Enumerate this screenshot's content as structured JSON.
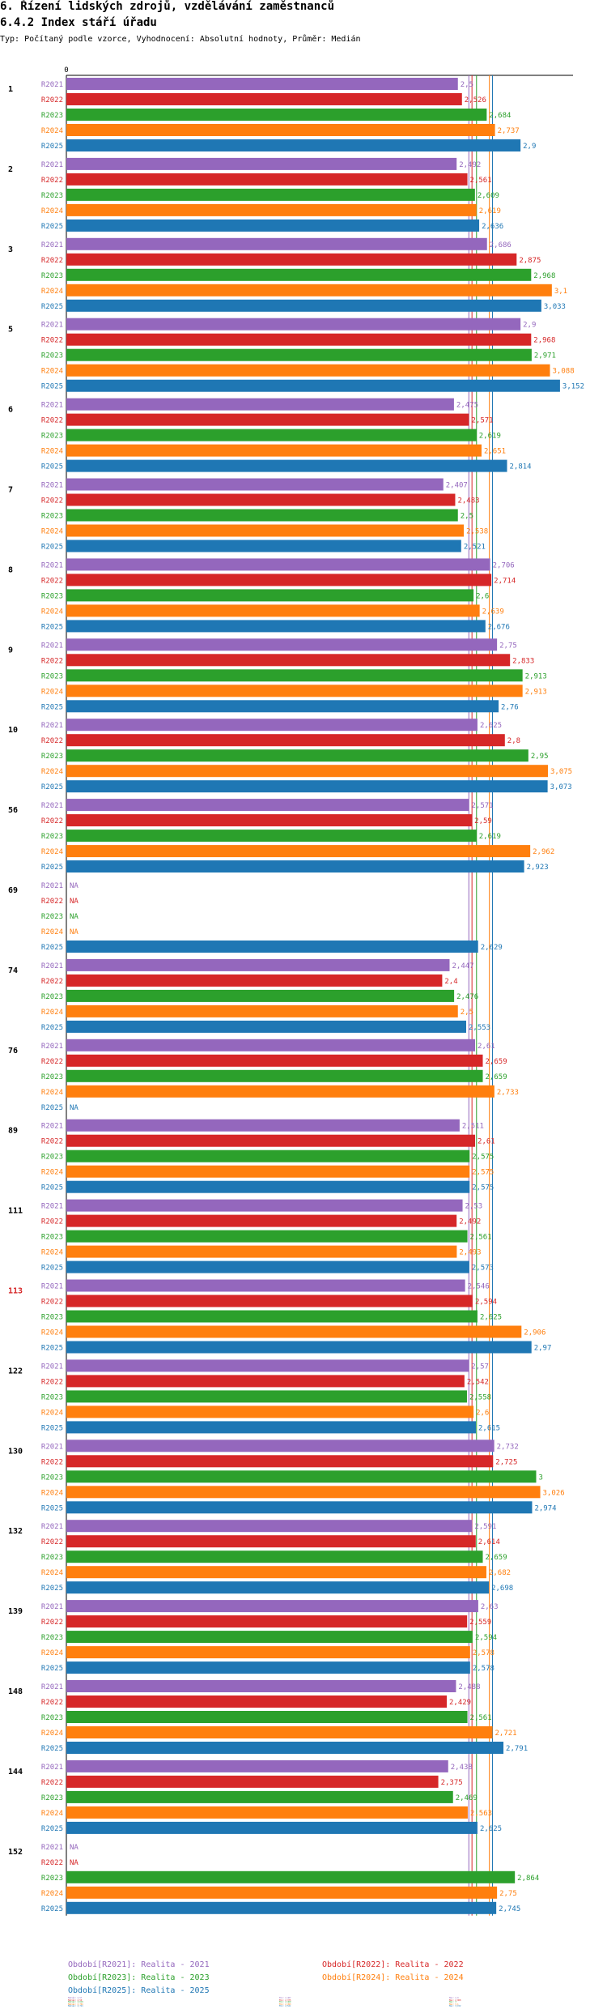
{
  "header": {
    "title": "6. Řízení lidských zdrojů, vzdělávání zaměstnanců",
    "subtitle": "6.4.2 Index stáří úřadu",
    "meta": "Typ: Počítaný podle vzorce, Vyhodnocení: Absolutní hodnoty, Průměr: Medián"
  },
  "chart_data": {
    "type": "bar",
    "orientation": "horizontal",
    "axis_zero_label": "0",
    "xlim": [
      0,
      3.3
    ],
    "colors": {
      "R2021": "#9467bd",
      "R2022": "#d62728",
      "R2023": "#2ca02c",
      "R2024": "#ff7f0e",
      "R2025": "#1f77b4",
      "highlight": "#d62728"
    },
    "series_names": [
      "R2021",
      "R2022",
      "R2023",
      "R2024",
      "R2025"
    ],
    "groups": [
      {
        "label": "1",
        "highlight": false,
        "values": [
          2.5,
          2.526,
          2.684,
          2.737,
          2.9
        ]
      },
      {
        "label": "2",
        "highlight": false,
        "values": [
          2.492,
          2.561,
          2.609,
          2.619,
          2.636
        ]
      },
      {
        "label": "3",
        "highlight": false,
        "values": [
          2.686,
          2.875,
          2.968,
          3.1,
          3.033
        ]
      },
      {
        "label": "5",
        "highlight": false,
        "values": [
          2.9,
          2.968,
          2.971,
          3.088,
          3.152
        ]
      },
      {
        "label": "6",
        "highlight": false,
        "values": [
          2.475,
          2.571,
          2.619,
          2.651,
          2.814
        ]
      },
      {
        "label": "7",
        "highlight": false,
        "values": [
          2.407,
          2.483,
          2.5,
          2.538,
          2.521
        ]
      },
      {
        "label": "8",
        "highlight": false,
        "values": [
          2.706,
          2.714,
          2.6,
          2.639,
          2.676
        ]
      },
      {
        "label": "9",
        "highlight": false,
        "values": [
          2.75,
          2.833,
          2.913,
          2.913,
          2.76
        ]
      },
      {
        "label": "10",
        "highlight": false,
        "values": [
          2.625,
          2.8,
          2.95,
          3.075,
          3.073
        ]
      },
      {
        "label": "56",
        "highlight": false,
        "values": [
          2.571,
          2.59,
          2.619,
          2.962,
          2.923
        ]
      },
      {
        "label": "69",
        "highlight": false,
        "values": [
          null,
          null,
          null,
          null,
          2.629
        ]
      },
      {
        "label": "74",
        "highlight": false,
        "values": [
          2.447,
          2.4,
          2.476,
          2.5,
          2.553
        ]
      },
      {
        "label": "76",
        "highlight": false,
        "values": [
          2.61,
          2.659,
          2.659,
          2.733,
          null
        ]
      },
      {
        "label": "89",
        "highlight": false,
        "values": [
          2.511,
          2.61,
          2.575,
          2.575,
          2.575
        ]
      },
      {
        "label": "111",
        "highlight": false,
        "values": [
          2.53,
          2.492,
          2.561,
          2.493,
          2.573
        ]
      },
      {
        "label": "113",
        "highlight": true,
        "values": [
          2.546,
          2.594,
          2.625,
          2.906,
          2.97
        ]
      },
      {
        "label": "122",
        "highlight": false,
        "values": [
          2.57,
          2.542,
          2.558,
          2.6,
          2.615
        ]
      },
      {
        "label": "130",
        "highlight": false,
        "values": [
          2.732,
          2.725,
          3,
          3.026,
          2.974
        ]
      },
      {
        "label": "132",
        "highlight": false,
        "values": [
          2.591,
          2.614,
          2.659,
          2.682,
          2.698
        ]
      },
      {
        "label": "139",
        "highlight": false,
        "values": [
          2.63,
          2.559,
          2.594,
          2.578,
          2.578
        ]
      },
      {
        "label": "148",
        "highlight": false,
        "values": [
          2.488,
          2.429,
          2.561,
          2.721,
          2.791
        ]
      },
      {
        "label": "144",
        "highlight": false,
        "values": [
          2.438,
          2.375,
          2.469,
          2.563,
          2.625
        ]
      },
      {
        "label": "152",
        "highlight": false,
        "values": [
          null,
          null,
          2.864,
          2.75,
          2.745
        ]
      }
    ],
    "na_label": "NA",
    "medians": [
      2.57,
      2.59,
      2.619,
      2.701,
      2.721
    ]
  },
  "legend": {
    "periods": [
      "Období[R2021]: Realita - 2021",
      "Období[R2022]: Realita - 2022",
      "Období[R2023]: Realita - 2023",
      "Období[R2024]: Realita - 2024",
      "Období[R2025]: Realita - 2025"
    ],
    "stats": [
      {
        "median": "Medián: 2,57",
        "min": "Min: 2,407",
        "max": "Max: 2,9"
      },
      {
        "median": "Medián: 2,59",
        "min": "Min: 2,375",
        "max": "Max: 2,968"
      },
      {
        "median": "Medián: 2,619",
        "min": "Min: 2,469",
        "max": "Max: 3"
      },
      {
        "median": "Medián: 2,701",
        "min": "Min: 2,493",
        "max": "Max: 3,1"
      },
      {
        "median": "Medián: 2,721",
        "min": "Min: 2,521",
        "max": "Max: 3,152"
      }
    ]
  }
}
